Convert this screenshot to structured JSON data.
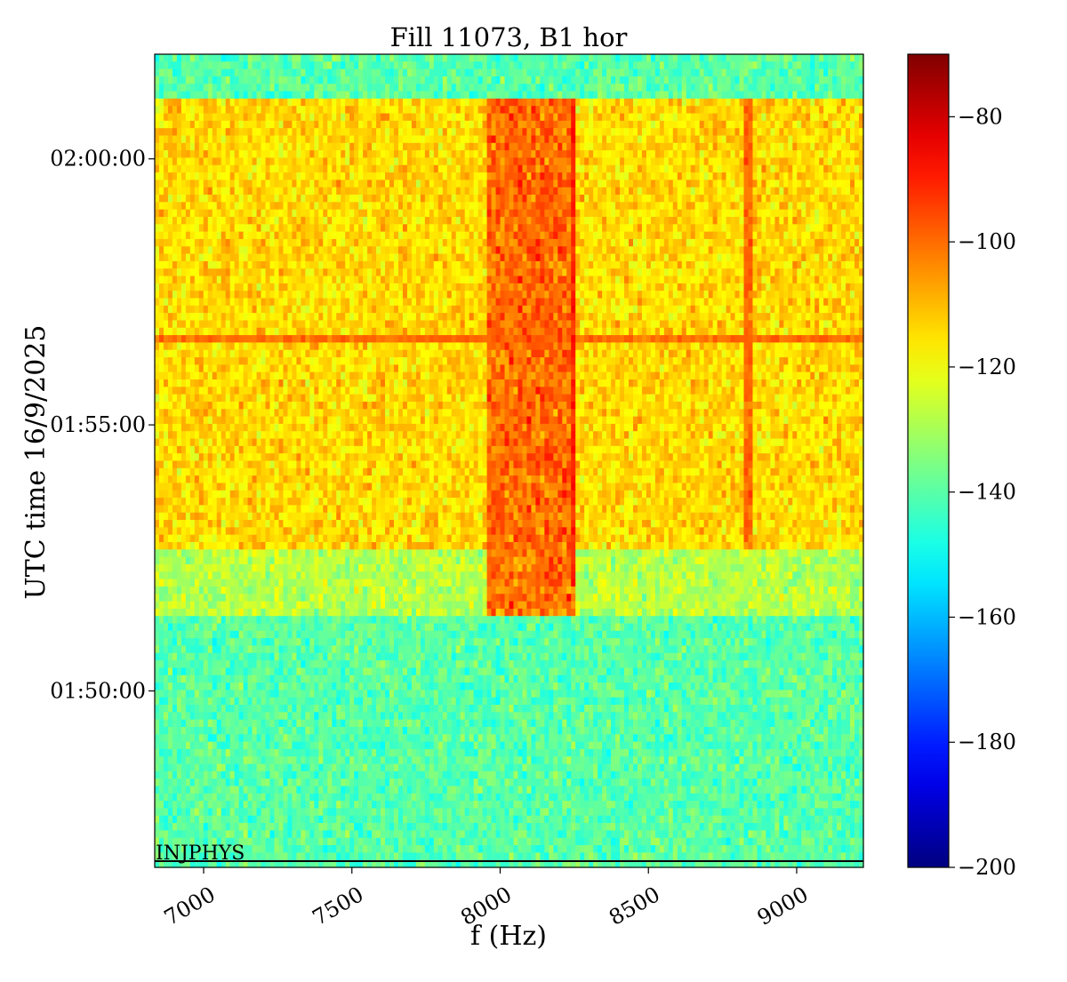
{
  "chart_data": {
    "type": "heatmap",
    "title": "Fill 11073, B1 hor",
    "xlabel": "f (Hz)",
    "ylabel": "UTC time 16/9/2025",
    "x_range": [
      6835,
      9225
    ],
    "x_ticks": [
      7000,
      7500,
      8000,
      8500,
      9000
    ],
    "x_tick_labels": [
      "7000",
      "7500",
      "8000",
      "8500",
      "9000"
    ],
    "y_range": [
      "01:46:41",
      "02:01:58"
    ],
    "y_ticks": [
      "01:50:00",
      "01:55:00",
      "02:00:00"
    ],
    "y_tick_labels": [
      "01:50:00",
      "01:55:00",
      "02:00:00"
    ],
    "colorbar": {
      "range": [
        -200,
        -70
      ],
      "ticks": [
        -80,
        -100,
        -120,
        -140,
        -160,
        -180,
        -200
      ],
      "tick_labels": [
        "−80",
        "−100",
        "−120",
        "−140",
        "−160",
        "−180",
        "−200"
      ],
      "colormap": "jet"
    },
    "annotation": {
      "text": "INJPHYS",
      "time": "01:46:48"
    },
    "regions": [
      {
        "from": "01:46:41",
        "to": "01:51:22",
        "level_dbm": -140
      },
      {
        "from": "01:51:22",
        "to": "01:52:40",
        "level_dbm": -128
      },
      {
        "from": "01:52:40",
        "to": "02:01:08",
        "level_dbm": -114
      },
      {
        "from": "02:01:08",
        "to": "02:01:58",
        "level_dbm": -140
      }
    ],
    "lines": [
      {
        "type": "band",
        "f_from": 7950,
        "f_to": 8250,
        "from": "01:51:22",
        "to": "02:01:08",
        "level_dbm": -100
      },
      {
        "type": "vertical",
        "f": 8250,
        "from": "01:52:00",
        "to": "02:01:08",
        "level_dbm": -90
      },
      {
        "type": "vertical",
        "f": 8835,
        "from": "01:52:40",
        "to": "02:01:08",
        "level_dbm": -100
      },
      {
        "type": "horizontal",
        "time": "01:56:40",
        "level_dbm": -100
      }
    ]
  }
}
